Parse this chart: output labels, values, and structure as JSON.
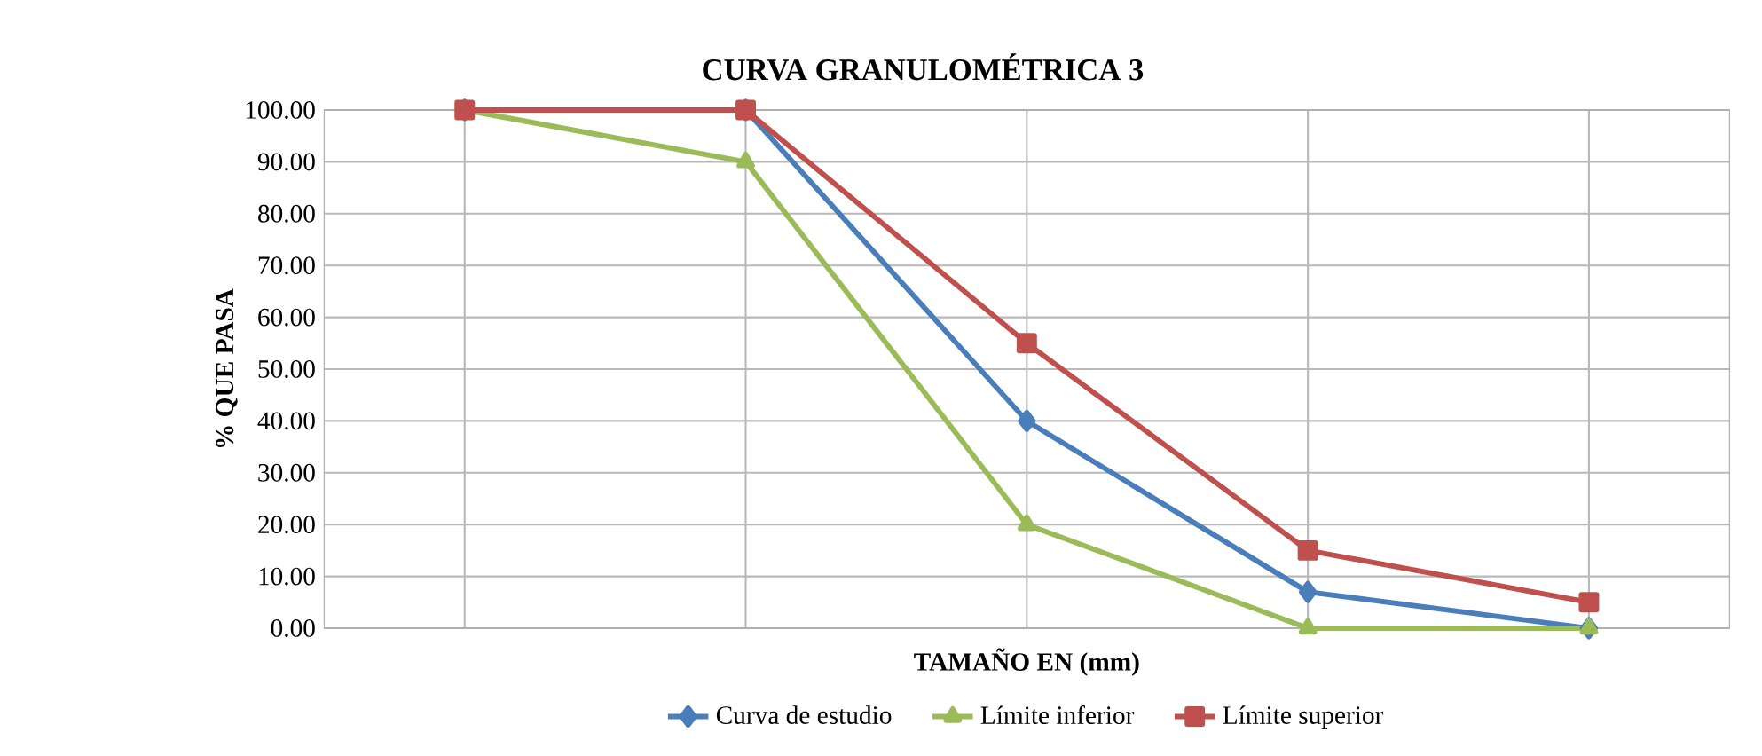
{
  "chart_data": {
    "type": "line",
    "title": "CURVA GRANULOMÉTRICA 3",
    "xlabel": "TAMAÑO EN (mm)",
    "ylabel": "% QUE PASA",
    "categories": [
      null,
      null,
      null,
      null,
      null
    ],
    "series": [
      {
        "name": "Curva de estudio",
        "color": "#4a7ebb",
        "marker": "diamond",
        "values": [
          100,
          100,
          40,
          7,
          0
        ]
      },
      {
        "name": "Límite inferior",
        "color": "#9bbb59",
        "marker": "triangle",
        "values": [
          100,
          90,
          20,
          0,
          0
        ]
      },
      {
        "name": "Límite superior",
        "color": "#c0504d",
        "marker": "square",
        "values": [
          100,
          100,
          55,
          15,
          5
        ]
      }
    ],
    "ylim": [
      0,
      100
    ],
    "yticks": [
      {
        "value": 0,
        "label": "0.00"
      },
      {
        "value": 10,
        "label": "10.00"
      },
      {
        "value": 20,
        "label": "20.00"
      },
      {
        "value": 30,
        "label": "30.00"
      },
      {
        "value": 40,
        "label": "40.00"
      },
      {
        "value": 50,
        "label": "50.00"
      },
      {
        "value": 60,
        "label": "60.00"
      },
      {
        "value": 70,
        "label": "70.00"
      },
      {
        "value": 80,
        "label": "80.00"
      },
      {
        "value": 90,
        "label": "90.00"
      },
      {
        "value": 100,
        "label": "100.00"
      }
    ],
    "grid": true,
    "legend": "bottom",
    "line_style": "solid"
  }
}
